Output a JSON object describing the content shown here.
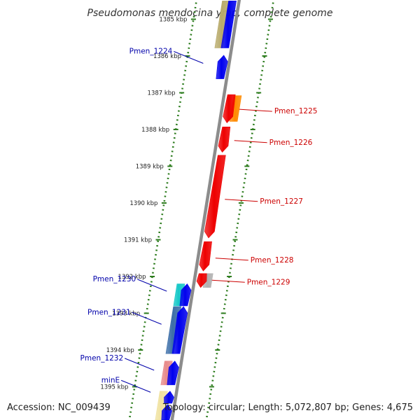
{
  "title": "Pseudomonas mendocina ymp, complete genome",
  "footer": {
    "accession": "Accession: NC_009439",
    "summary": "Topology: circular; Length: 5,072,807 bp; Genes: 4,675"
  },
  "colors": {
    "backbone": "#8c8c8c",
    "tick": "#2e7d1f",
    "forward_label": "#0000aa",
    "reverse_label": "#cc0000",
    "blue": "#0000ee",
    "red": "#ee0000",
    "orange": "#ff8a00",
    "grey": "#b0b0b0",
    "khaki": "#b8aa6a",
    "cream": "#f0e2a0",
    "cyan": "#16c8c8",
    "steel": "#3c6ea8",
    "pink": "#e88b8b"
  },
  "kbp_ticks": [
    {
      "kbp": 1385,
      "label": "1385 kbp"
    },
    {
      "kbp": 1386,
      "label": "1386 kbp"
    },
    {
      "kbp": 1387,
      "label": "1387 kbp"
    },
    {
      "kbp": 1388,
      "label": "1388 kbp"
    },
    {
      "kbp": 1389,
      "label": "1389 kbp"
    },
    {
      "kbp": 1390,
      "label": "1390 kbp"
    },
    {
      "kbp": 1391,
      "label": "1391 kbp"
    },
    {
      "kbp": 1392,
      "label": "1392 kbp"
    },
    {
      "kbp": 1393,
      "label": "1393 kbp"
    },
    {
      "kbp": 1394,
      "label": "1394 kbp"
    },
    {
      "kbp": 1395,
      "label": "1395 kbp"
    }
  ],
  "features": [
    {
      "id": "khaki-1",
      "strand": "+",
      "lane": 2,
      "start": 1384.5,
      "end": 1385.78,
      "color": "khaki",
      "arrow": false
    },
    {
      "id": "blue-1",
      "strand": "+",
      "lane": 1,
      "start": 1384.5,
      "end": 1385.78,
      "color": "blue",
      "arrow": false
    },
    {
      "id": "blue-2",
      "strand": "+",
      "lane": 1,
      "start": 1385.98,
      "end": 1386.62,
      "color": "blue",
      "arrow": true
    },
    {
      "id": "orange-1",
      "strand": "-",
      "lane": 2,
      "start": 1387.08,
      "end": 1387.78,
      "color": "orange",
      "arrow": false
    },
    {
      "id": "red-1",
      "strand": "-",
      "lane": 1,
      "start": 1387.05,
      "end": 1387.82,
      "color": "red",
      "arrow": true
    },
    {
      "id": "red-2",
      "strand": "-",
      "lane": 1,
      "start": 1387.93,
      "end": 1388.62,
      "color": "red",
      "arrow": true
    },
    {
      "id": "red-3",
      "strand": "-",
      "lane": 1,
      "start": 1388.7,
      "end": 1390.95,
      "color": "red",
      "arrow": true
    },
    {
      "id": "red-4",
      "strand": "-",
      "lane": 1,
      "start": 1391.05,
      "end": 1391.85,
      "color": "red",
      "arrow": true
    },
    {
      "id": "grey-1",
      "strand": "-",
      "lane": 2,
      "start": 1391.92,
      "end": 1392.3,
      "color": "grey",
      "arrow": false
    },
    {
      "id": "red-5",
      "strand": "-",
      "lane": 1,
      "start": 1391.92,
      "end": 1392.3,
      "color": "red",
      "arrow": true
    },
    {
      "id": "cyan-1",
      "strand": "+",
      "lane": 2,
      "start": 1392.2,
      "end": 1392.8,
      "color": "cyan",
      "arrow": false
    },
    {
      "id": "blue-3",
      "strand": "+",
      "lane": 1,
      "start": 1392.2,
      "end": 1392.8,
      "color": "blue",
      "arrow": true
    },
    {
      "id": "steel-1",
      "strand": "+",
      "lane": 2,
      "start": 1392.82,
      "end": 1394.1,
      "color": "steel",
      "arrow": false
    },
    {
      "id": "blue-4",
      "strand": "+",
      "lane": 1,
      "start": 1392.82,
      "end": 1394.1,
      "color": "blue",
      "arrow": true
    },
    {
      "id": "pink-1",
      "strand": "+",
      "lane": 2,
      "start": 1394.3,
      "end": 1394.95,
      "color": "pink",
      "arrow": false
    },
    {
      "id": "blue-5",
      "strand": "+",
      "lane": 1,
      "start": 1394.3,
      "end": 1394.95,
      "color": "blue",
      "arrow": true
    },
    {
      "id": "cream-1",
      "strand": "+",
      "lane": 2,
      "start": 1395.12,
      "end": 1395.9,
      "color": "cream",
      "arrow": false
    },
    {
      "id": "blue-6",
      "strand": "+",
      "lane": 1,
      "start": 1395.12,
      "end": 1395.45,
      "color": "blue",
      "arrow": true
    },
    {
      "id": "blue-7",
      "strand": "+",
      "lane": 1,
      "start": 1395.48,
      "end": 1395.9,
      "color": "blue",
      "arrow": true
    }
  ],
  "gene_labels": [
    {
      "name": "Pmen_1224",
      "strand": "+",
      "kbp": 1386.2
    },
    {
      "name": "Pmen_1225",
      "strand": "-",
      "kbp": 1387.45
    },
    {
      "name": "Pmen_1226",
      "strand": "-",
      "kbp": 1388.3
    },
    {
      "name": "Pmen_1227",
      "strand": "-",
      "kbp": 1389.9
    },
    {
      "name": "Pmen_1228",
      "strand": "-",
      "kbp": 1391.5
    },
    {
      "name": "Pmen_1229",
      "strand": "-",
      "kbp": 1392.1
    },
    {
      "name": "Pmen_1230",
      "strand": "+",
      "kbp": 1392.4
    },
    {
      "name": "Pmen_1231",
      "strand": "+",
      "kbp": 1393.3
    },
    {
      "name": "Pmen_1232",
      "strand": "+",
      "kbp": 1394.55
    },
    {
      "name": "minE",
      "strand": "+",
      "kbp": 1395.15
    }
  ]
}
